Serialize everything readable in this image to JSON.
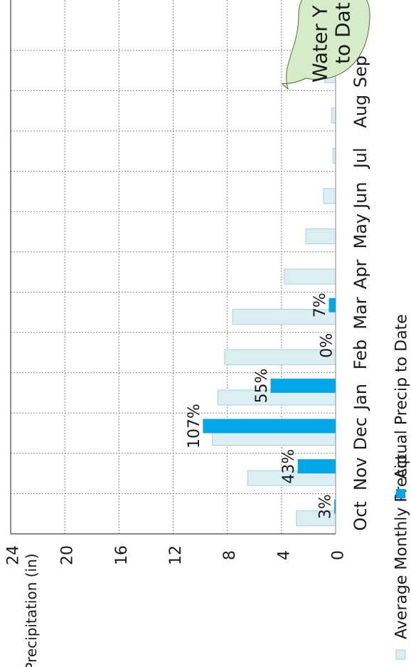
{
  "chart_data": {
    "type": "bar",
    "orientation": "rotated-90-ccw",
    "categories": [
      "Oct",
      "Nov",
      "Dec",
      "Jan",
      "Feb",
      "Mar",
      "Apr",
      "May",
      "Jun",
      "Jul",
      "Aug",
      "Sep"
    ],
    "series": [
      {
        "name": "Average Monthly Precip",
        "color": "#dbeef4",
        "border": "#a9cfdb",
        "values": [
          2.9,
          6.5,
          9.1,
          8.7,
          8.2,
          7.6,
          3.8,
          2.2,
          0.9,
          0.2,
          0.3,
          0.8
        ]
      },
      {
        "name": "Actual Precip to Date",
        "color": "#00a6e6",
        "values": [
          0.1,
          2.8,
          9.8,
          4.8,
          0.0,
          0.5,
          null,
          null,
          null,
          null,
          null,
          null
        ]
      }
    ],
    "data_labels": [
      "3%",
      "43%",
      "107%",
      "55%",
      "0%",
      "7%"
    ],
    "ylabel": "Precipitation (in)",
    "ylim": [
      0,
      24
    ],
    "yticks": [
      0,
      4,
      8,
      12,
      16,
      20,
      24
    ],
    "grid": true,
    "legend_position": "bottom"
  },
  "callout": {
    "line1": "Water Y",
    "line2": "to Dat",
    "fill": "#d6ecc9",
    "stroke": "#556b3f"
  }
}
